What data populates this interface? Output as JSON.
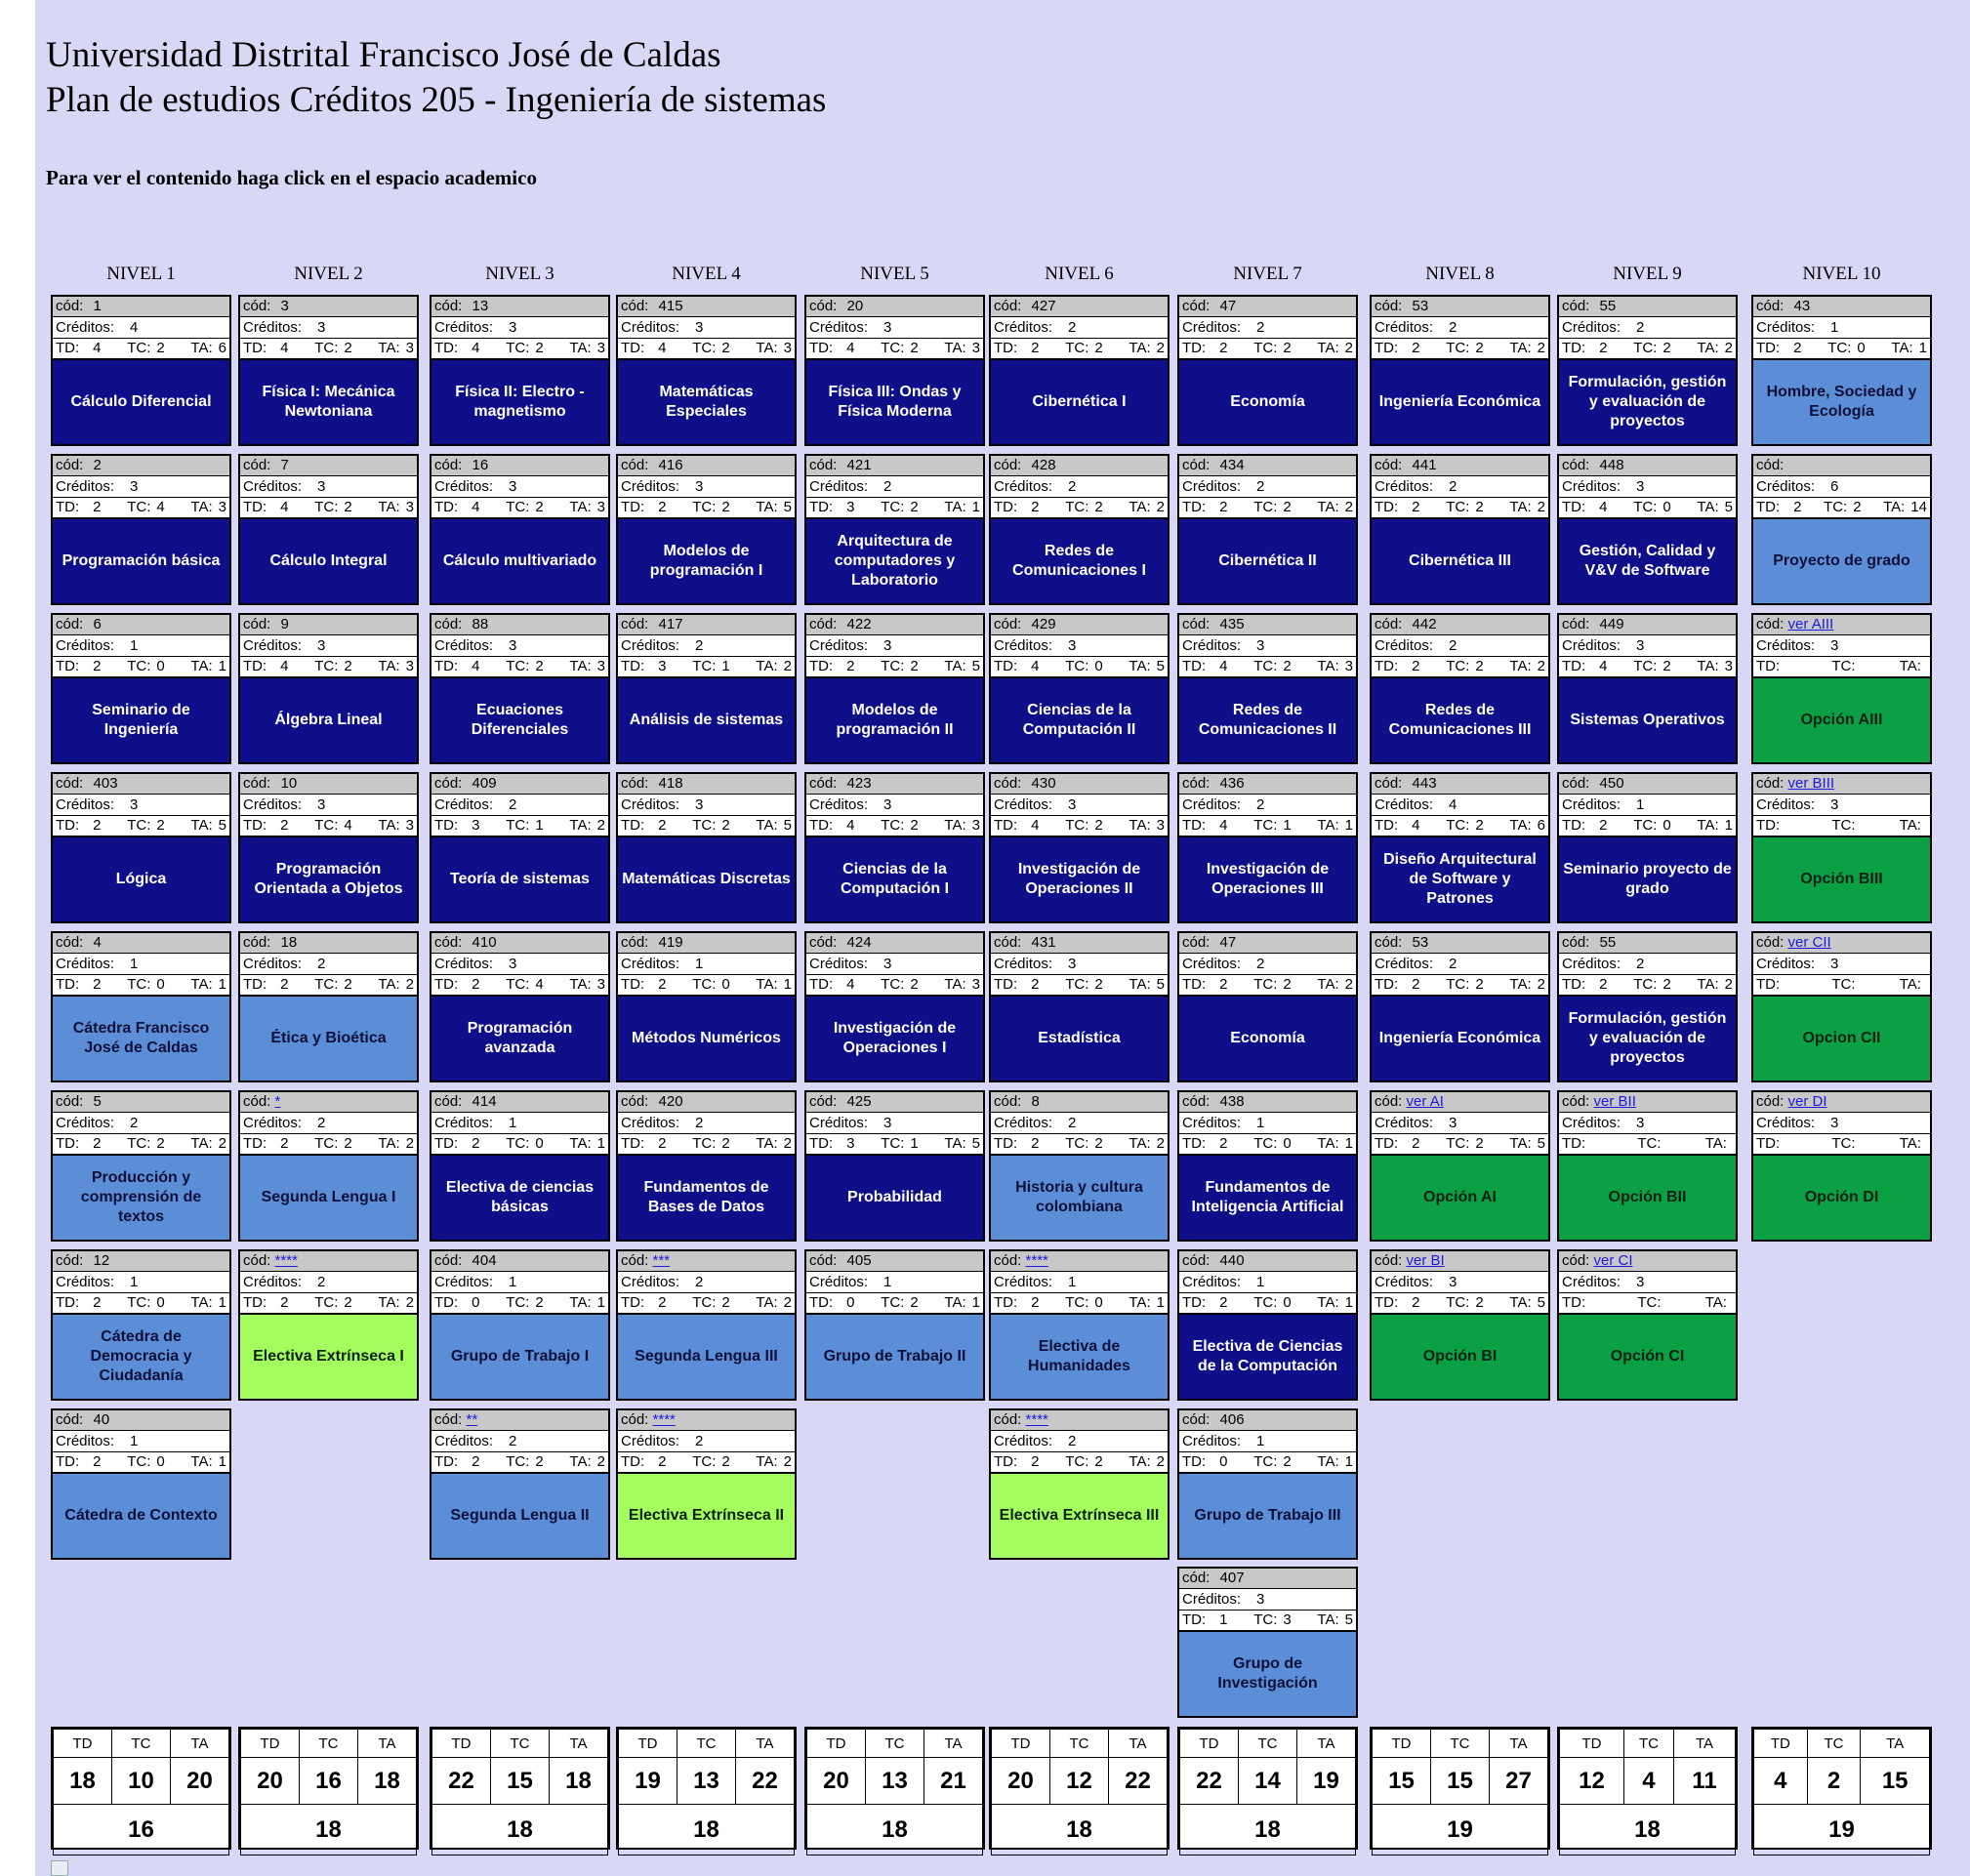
{
  "header": {
    "line1": "Universidad Distrital Francisco José de Caldas",
    "line2": "Plan de estudios Créditos 205 - Ingeniería de sistemas",
    "instruction": "Para ver el contenido haga click en el espacio academico"
  },
  "labels": {
    "cod": "cód:",
    "creditos": "Créditos:",
    "td": "TD:",
    "tc": "TC:",
    "ta": "TA:"
  },
  "colors": {
    "dark": "#0f0f8a",
    "light": "#5b8ed6",
    "green": "#0aa043",
    "lime": "#a4fd5e",
    "background": "#d8d8f6"
  },
  "levels": [
    {
      "label": "NIVEL 1",
      "courses": [
        {
          "cod": "1",
          "creditos": "4",
          "td": "4",
          "tc": "2",
          "ta": "6",
          "name": "Cálculo Diferencial",
          "color": "dark"
        },
        {
          "cod": "2",
          "creditos": "3",
          "td": "2",
          "tc": "4",
          "ta": "3",
          "name": "Programación básica",
          "color": "dark"
        },
        {
          "cod": "6",
          "creditos": "1",
          "td": "2",
          "tc": "0",
          "ta": "1",
          "name": "Seminario de Ingeniería",
          "color": "dark"
        },
        {
          "cod": "403",
          "creditos": "3",
          "td": "2",
          "tc": "2",
          "ta": "5",
          "name": "Lógica",
          "color": "dark"
        },
        {
          "cod": "4",
          "creditos": "1",
          "td": "2",
          "tc": "0",
          "ta": "1",
          "name": "Cátedra Francisco José de Caldas",
          "color": "light"
        },
        {
          "cod": "5",
          "creditos": "2",
          "td": "2",
          "tc": "2",
          "ta": "2",
          "name": "Producción y comprensión de textos",
          "color": "light"
        },
        {
          "cod": "12",
          "creditos": "1",
          "td": "2",
          "tc": "0",
          "ta": "1",
          "name": "Cátedra de Democracia y Ciudadanía",
          "color": "light"
        },
        {
          "cod": "40",
          "creditos": "1",
          "td": "2",
          "tc": "0",
          "ta": "1",
          "name": "Cátedra de Contexto",
          "color": "light"
        }
      ],
      "totals": {
        "td": "18",
        "tc": "10",
        "ta": "20",
        "creditos": "16"
      }
    },
    {
      "label": "NIVEL 2",
      "courses": [
        {
          "cod": "3",
          "creditos": "3",
          "td": "4",
          "tc": "2",
          "ta": "3",
          "name": "Física I: Mecánica Newtoniana",
          "color": "dark"
        },
        {
          "cod": "7",
          "creditos": "3",
          "td": "4",
          "tc": "2",
          "ta": "3",
          "name": "Cálculo Integral",
          "color": "dark"
        },
        {
          "cod": "9",
          "creditos": "3",
          "td": "4",
          "tc": "2",
          "ta": "3",
          "name": "Álgebra Lineal",
          "color": "dark"
        },
        {
          "cod": "10",
          "creditos": "3",
          "td": "2",
          "tc": "4",
          "ta": "3",
          "name": "Programación Orientada a Objetos",
          "color": "dark"
        },
        {
          "cod": "18",
          "creditos": "2",
          "td": "2",
          "tc": "2",
          "ta": "2",
          "name": "Ética y Bioética",
          "color": "light"
        },
        {
          "cod": "*",
          "link": true,
          "creditos": "2",
          "td": "2",
          "tc": "2",
          "ta": "2",
          "name": "Segunda Lengua I",
          "color": "light"
        },
        {
          "cod": "****",
          "link": true,
          "creditos": "2",
          "td": "2",
          "tc": "2",
          "ta": "2",
          "name": "Electiva Extrínseca I",
          "color": "lime"
        }
      ],
      "totals": {
        "td": "20",
        "tc": "16",
        "ta": "18",
        "creditos": "18"
      }
    },
    {
      "label": "NIVEL 3",
      "courses": [
        {
          "cod": "13",
          "creditos": "3",
          "td": "4",
          "tc": "2",
          "ta": "3",
          "name": "Física II: Electro - magnetismo",
          "color": "dark"
        },
        {
          "cod": "16",
          "creditos": "3",
          "td": "4",
          "tc": "2",
          "ta": "3",
          "name": "Cálculo multivariado",
          "color": "dark"
        },
        {
          "cod": "88",
          "creditos": "3",
          "td": "4",
          "tc": "2",
          "ta": "3",
          "name": "Ecuaciones Diferenciales",
          "color": "dark"
        },
        {
          "cod": "409",
          "creditos": "2",
          "td": "3",
          "tc": "1",
          "ta": "2",
          "name": "Teoría de sistemas",
          "color": "dark"
        },
        {
          "cod": "410",
          "creditos": "3",
          "td": "2",
          "tc": "4",
          "ta": "3",
          "name": "Programación avanzada",
          "color": "dark"
        },
        {
          "cod": "414",
          "creditos": "1",
          "td": "2",
          "tc": "0",
          "ta": "1",
          "name": "Electiva de ciencias básicas",
          "color": "dark"
        },
        {
          "cod": "404",
          "creditos": "1",
          "td": "0",
          "tc": "2",
          "ta": "1",
          "name": "Grupo de Trabajo I",
          "color": "light"
        },
        {
          "cod": "**",
          "link": true,
          "creditos": "2",
          "td": "2",
          "tc": "2",
          "ta": "2",
          "name": "Segunda Lengua II",
          "color": "light"
        }
      ],
      "totals": {
        "td": "22",
        "tc": "15",
        "ta": "18",
        "creditos": "18"
      }
    },
    {
      "label": "NIVEL 4",
      "courses": [
        {
          "cod": "415",
          "creditos": "3",
          "td": "4",
          "tc": "2",
          "ta": "3",
          "name": "Matemáticas Especiales",
          "color": "dark"
        },
        {
          "cod": "416",
          "creditos": "3",
          "td": "2",
          "tc": "2",
          "ta": "5",
          "name": "Modelos de programación I",
          "color": "dark"
        },
        {
          "cod": "417",
          "creditos": "2",
          "td": "3",
          "tc": "1",
          "ta": "2",
          "name": "Análisis de sistemas",
          "color": "dark"
        },
        {
          "cod": "418",
          "creditos": "3",
          "td": "2",
          "tc": "2",
          "ta": "5",
          "name": "Matemáticas Discretas",
          "color": "dark"
        },
        {
          "cod": "419",
          "creditos": "1",
          "td": "2",
          "tc": "0",
          "ta": "1",
          "name": "Métodos Numéricos",
          "color": "dark"
        },
        {
          "cod": "420",
          "creditos": "2",
          "td": "2",
          "tc": "2",
          "ta": "2",
          "name": "Fundamentos de Bases de Datos",
          "color": "dark"
        },
        {
          "cod": "***",
          "link": true,
          "creditos": "2",
          "td": "2",
          "tc": "2",
          "ta": "2",
          "name": "Segunda Lengua III",
          "color": "light"
        },
        {
          "cod": "****",
          "link": true,
          "creditos": "2",
          "td": "2",
          "tc": "2",
          "ta": "2",
          "name": "Electiva Extrínseca II",
          "color": "lime"
        }
      ],
      "totals": {
        "td": "19",
        "tc": "13",
        "ta": "22",
        "creditos": "18"
      }
    },
    {
      "label": "NIVEL 5",
      "courses": [
        {
          "cod": "20",
          "creditos": "3",
          "td": "4",
          "tc": "2",
          "ta": "3",
          "name": "Física III: Ondas y Física Moderna",
          "color": "dark"
        },
        {
          "cod": "421",
          "creditos": "2",
          "td": "3",
          "tc": "2",
          "ta": "1",
          "name": "Arquitectura de computadores y Laboratorio",
          "color": "dark"
        },
        {
          "cod": "422",
          "creditos": "3",
          "td": "2",
          "tc": "2",
          "ta": "5",
          "name": "Modelos de programación II",
          "color": "dark"
        },
        {
          "cod": "423",
          "creditos": "3",
          "td": "4",
          "tc": "2",
          "ta": "3",
          "name": "Ciencias de la Computación I",
          "color": "dark"
        },
        {
          "cod": "424",
          "creditos": "3",
          "td": "4",
          "tc": "2",
          "ta": "3",
          "name": "Investigación de Operaciones I",
          "color": "dark"
        },
        {
          "cod": "425",
          "creditos": "3",
          "td": "3",
          "tc": "1",
          "ta": "5",
          "name": "Probabilidad",
          "color": "dark"
        },
        {
          "cod": "405",
          "creditos": "1",
          "td": "0",
          "tc": "2",
          "ta": "1",
          "name": "Grupo de Trabajo II",
          "color": "light"
        }
      ],
      "totals": {
        "td": "20",
        "tc": "13",
        "ta": "21",
        "creditos": "18"
      }
    },
    {
      "label": "NIVEL 6",
      "courses": [
        {
          "cod": "427",
          "creditos": "2",
          "td": "2",
          "tc": "2",
          "ta": "2",
          "name": "Cibernética I",
          "color": "dark"
        },
        {
          "cod": "428",
          "creditos": "2",
          "td": "2",
          "tc": "2",
          "ta": "2",
          "name": "Redes de Comunicaciones I",
          "color": "dark"
        },
        {
          "cod": "429",
          "creditos": "3",
          "td": "4",
          "tc": "0",
          "ta": "5",
          "name": "Ciencias de la Computación II",
          "color": "dark"
        },
        {
          "cod": "430",
          "creditos": "3",
          "td": "4",
          "tc": "2",
          "ta": "3",
          "name": "Investigación de Operaciones II",
          "color": "dark"
        },
        {
          "cod": "431",
          "creditos": "3",
          "td": "2",
          "tc": "2",
          "ta": "5",
          "name": "Estadística",
          "color": "dark"
        },
        {
          "cod": "8",
          "creditos": "2",
          "td": "2",
          "tc": "2",
          "ta": "2",
          "name": "Historia y cultura colombiana",
          "color": "light"
        },
        {
          "cod": "****",
          "link": true,
          "creditos": "1",
          "td": "2",
          "tc": "0",
          "ta": "1",
          "name": "Electiva de Humanidades",
          "color": "light"
        },
        {
          "cod": "****",
          "link": true,
          "creditos": "2",
          "td": "2",
          "tc": "2",
          "ta": "2",
          "name": "Electiva Extrínseca III",
          "color": "lime"
        }
      ],
      "totals": {
        "td": "20",
        "tc": "12",
        "ta": "22",
        "creditos": "18"
      }
    },
    {
      "label": "NIVEL 7",
      "courses": [
        {
          "cod": "47",
          "creditos": "2",
          "td": "2",
          "tc": "2",
          "ta": "2",
          "name": "Economía",
          "color": "dark"
        },
        {
          "cod": "434",
          "creditos": "2",
          "td": "2",
          "tc": "2",
          "ta": "2",
          "name": "Cibernética II",
          "color": "dark"
        },
        {
          "cod": "435",
          "creditos": "3",
          "td": "4",
          "tc": "2",
          "ta": "3",
          "name": "Redes de Comunicaciones II",
          "color": "dark"
        },
        {
          "cod": "436",
          "creditos": "2",
          "td": "4",
          "tc": "1",
          "ta": "1",
          "name": "Investigación de Operaciones III",
          "color": "dark"
        },
        {
          "cod": "47",
          "creditos": "2",
          "td": "2",
          "tc": "2",
          "ta": "2",
          "name": "Economía",
          "color": "dark"
        },
        {
          "cod": "438",
          "creditos": "1",
          "td": "2",
          "tc": "0",
          "ta": "1",
          "name": "Fundamentos de Inteligencia Artificial",
          "color": "dark"
        },
        {
          "cod": "440",
          "creditos": "1",
          "td": "2",
          "tc": "0",
          "ta": "1",
          "name": "Electiva de Ciencias de la Computación",
          "color": "dark"
        },
        {
          "cod": "406",
          "creditos": "1",
          "td": "0",
          "tc": "2",
          "ta": "1",
          "name": "Grupo de Trabajo III",
          "color": "light"
        },
        {
          "cod": "407",
          "creditos": "3",
          "td": "1",
          "tc": "3",
          "ta": "5",
          "name": "Grupo de Investigación",
          "color": "light"
        }
      ],
      "totals": {
        "td": "22",
        "tc": "14",
        "ta": "19",
        "creditos": "18"
      }
    },
    {
      "label": "NIVEL 8",
      "courses": [
        {
          "cod": "53",
          "creditos": "2",
          "td": "2",
          "tc": "2",
          "ta": "2",
          "name": "Ingeniería Económica",
          "color": "dark"
        },
        {
          "cod": "441",
          "creditos": "2",
          "td": "2",
          "tc": "2",
          "ta": "2",
          "name": "Cibernética III",
          "color": "dark"
        },
        {
          "cod": "442",
          "creditos": "2",
          "td": "2",
          "tc": "2",
          "ta": "2",
          "name": "Redes de Comunicaciones III",
          "color": "dark"
        },
        {
          "cod": "443",
          "creditos": "4",
          "td": "4",
          "tc": "2",
          "ta": "6",
          "name": "Diseño Arquitectural de Software y Patrones",
          "color": "dark"
        },
        {
          "cod": "53",
          "creditos": "2",
          "td": "2",
          "tc": "2",
          "ta": "2",
          "name": "Ingeniería Económica",
          "color": "dark"
        },
        {
          "cod": "ver AI",
          "link": true,
          "creditos": "3",
          "td": "2",
          "tc": "2",
          "ta": "5",
          "name": "Opción AI",
          "color": "green"
        },
        {
          "cod": "ver BI",
          "link": true,
          "creditos": "3",
          "td": "2",
          "tc": "2",
          "ta": "5",
          "name": "Opción BI",
          "color": "green"
        }
      ],
      "totals": {
        "td": "15",
        "tc": "15",
        "ta": "27",
        "creditos": "19"
      }
    },
    {
      "label": "NIVEL 9",
      "courses": [
        {
          "cod": "55",
          "creditos": "2",
          "td": "2",
          "tc": "2",
          "ta": "2",
          "name": "Formulación, gestión y evaluación de proyectos",
          "color": "dark"
        },
        {
          "cod": "448",
          "creditos": "3",
          "td": "4",
          "tc": "0",
          "ta": "5",
          "name": "Gestión, Calidad y V&V de Software",
          "color": "dark"
        },
        {
          "cod": "449",
          "creditos": "3",
          "td": "4",
          "tc": "2",
          "ta": "3",
          "name": "Sistemas Operativos",
          "color": "dark"
        },
        {
          "cod": "450",
          "creditos": "1",
          "td": "2",
          "tc": "0",
          "ta": "1",
          "name": "Seminario proyecto de grado",
          "color": "dark"
        },
        {
          "cod": "55",
          "creditos": "2",
          "td": "2",
          "tc": "2",
          "ta": "2",
          "name": "Formulación, gestión y evaluación de proyectos",
          "color": "dark"
        },
        {
          "cod": "ver BII",
          "link": true,
          "creditos": "3",
          "td": "",
          "tc": "",
          "ta": "",
          "name": "Opción BII",
          "color": "green"
        },
        {
          "cod": "ver CI",
          "link": true,
          "creditos": "3",
          "td": "",
          "tc": "",
          "ta": "",
          "name": "Opción CI",
          "color": "green"
        }
      ],
      "totals": {
        "td": "12",
        "tc": "4",
        "ta": "11",
        "creditos": "18"
      }
    },
    {
      "label": "NIVEL 10",
      "courses": [
        {
          "cod": "43",
          "creditos": "1",
          "td": "2",
          "tc": "0",
          "ta": "1",
          "name": "Hombre, Sociedad y Ecología",
          "color": "light"
        },
        {
          "cod": "",
          "creditos": "6",
          "td": "2",
          "tc": "2",
          "ta": "14",
          "name": "Proyecto de grado",
          "color": "light"
        },
        {
          "cod": "ver AIII",
          "link": true,
          "creditos": "3",
          "td": "",
          "tc": "",
          "ta": "",
          "name": "Opción AIII",
          "color": "green"
        },
        {
          "cod": "ver BIII",
          "link": true,
          "creditos": "3",
          "td": "",
          "tc": "",
          "ta": "",
          "name": "Opción BIII",
          "color": "green"
        },
        {
          "cod": "ver CII",
          "link": true,
          "creditos": "3",
          "td": "",
          "tc": "",
          "ta": "",
          "name": "Opcion CII",
          "color": "green"
        },
        {
          "cod": "ver DI",
          "link": true,
          "creditos": "3",
          "td": "",
          "tc": "",
          "ta": "",
          "name": "Opción DI",
          "color": "green"
        }
      ],
      "totals": {
        "td": "4",
        "tc": "2",
        "ta": "15",
        "creditos": "19"
      }
    }
  ]
}
